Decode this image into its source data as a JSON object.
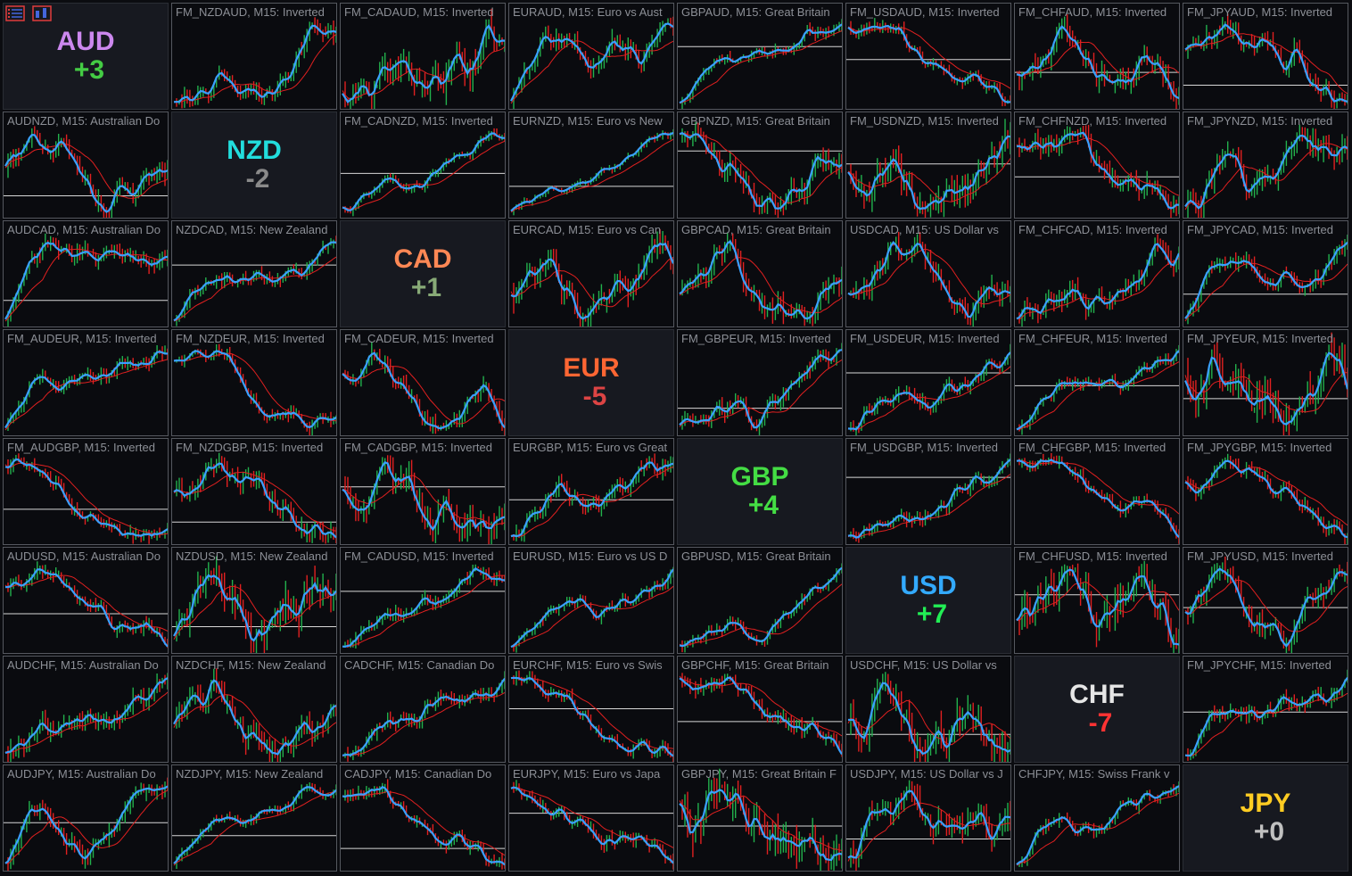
{
  "toolbar": [
    {
      "name": "list-view-icon",
      "color": "#e03c3c"
    },
    {
      "name": "chart-settings-icon",
      "color": "#e03c3c"
    }
  ],
  "colors": {
    "price_line": "#3aa0ff",
    "ma_line": "#e02020",
    "bull": "#22b14c",
    "bear": "#e02020",
    "level": "#d8d8d8"
  },
  "currencies": [
    {
      "code": "AUD",
      "score": "+3",
      "color": "#cc88ee",
      "score_color": "#44cc44"
    },
    {
      "code": "NZD",
      "score": "-2",
      "color": "#22dddd",
      "score_color": "#8a8a8a"
    },
    {
      "code": "CAD",
      "score": "+1",
      "color": "#ff8855",
      "score_color": "#88aa77"
    },
    {
      "code": "EUR",
      "score": "-5",
      "color": "#ff6633",
      "score_color": "#dd4444"
    },
    {
      "code": "GBP",
      "score": "+4",
      "color": "#44dd44",
      "score_color": "#44dd44"
    },
    {
      "code": "USD",
      "score": "+7",
      "color": "#33aaff",
      "score_color": "#22ee55"
    },
    {
      "code": "CHF",
      "score": "-7",
      "color": "#e6e6e6",
      "score_color": "#ff3333"
    },
    {
      "code": "JPY",
      "score": "+0",
      "color": "#ffcc22",
      "score_color": "#c0c0c0"
    }
  ],
  "charts": [
    [
      "",
      "FM_NZDAUD, M15:  Inverted",
      "FM_CADAUD, M15:  Inverted",
      "EURAUD, M15:  Euro vs Aust",
      "GBPAUD, M15:  Great Britain",
      "FM_USDAUD, M15:  Inverted",
      "FM_CHFAUD, M15:  Inverted",
      "FM_JPYAUD, M15:  Inverted"
    ],
    [
      "AUDNZD, M15:  Australian Do",
      "",
      "FM_CADNZD, M15:  Inverted",
      "EURNZD, M15:  Euro vs New",
      "GBPNZD, M15:  Great Britain",
      "FM_USDNZD, M15:  Inverted",
      "FM_CHFNZD, M15:  Inverted",
      "FM_JPYNZD, M15:  Inverted"
    ],
    [
      "AUDCAD, M15:  Australian Do",
      "NZDCAD, M15:  New Zealand",
      "",
      "EURCAD, M15:  Euro vs Can",
      "GBPCAD, M15:  Great Britain",
      "USDCAD, M15:  US Dollar vs",
      "FM_CHFCAD, M15:  Inverted",
      "FM_JPYCAD, M15:  Inverted"
    ],
    [
      "FM_AUDEUR, M15:  Inverted",
      "FM_NZDEUR, M15:  Inverted",
      "FM_CADEUR, M15:  Inverted",
      "",
      "FM_GBPEUR, M15:  Inverted",
      "FM_USDEUR, M15:  Inverted",
      "FM_CHFEUR, M15:  Inverted",
      "FM_JPYEUR, M15:  Inverted"
    ],
    [
      "FM_AUDGBP, M15:  Inverted",
      "FM_NZDGBP, M15:  Inverted",
      "FM_CADGBP, M15:  Inverted",
      "EURGBP, M15:  Euro vs Great",
      "",
      "FM_USDGBP, M15:  Inverted",
      "FM_CHFGBP, M15:  Inverted",
      "FM_JPYGBP, M15:  Inverted"
    ],
    [
      "AUDUSD, M15:  Australian Do",
      "NZDUSD, M15:  New Zealand",
      "FM_CADUSD, M15:  Inverted",
      "EURUSD, M15:  Euro vs US D",
      "GBPUSD, M15:  Great Britain",
      "",
      "FM_CHFUSD, M15:  Inverted",
      "FM_JPYUSD, M15:  Inverted"
    ],
    [
      "AUDCHF, M15:  Australian Do",
      "NZDCHF, M15:  New Zealand",
      "CADCHF, M15:  Canadian Do",
      "EURCHF, M15:  Euro vs Swis",
      "GBPCHF, M15:  Great Britain",
      "USDCHF, M15:  US Dollar vs",
      "",
      "FM_JPYCHF, M15:  Inverted"
    ],
    [
      "AUDJPY, M15:  Australian Do",
      "NZDJPY, M15:  New Zealand",
      "CADJPY, M15:  Canadian Do",
      "EURJPY, M15:  Euro vs Japa",
      "GBPJPY, M15:  Great Britain F",
      "USDJPY, M15:  US Dollar vs J",
      "CHFJPY, M15:  Swiss Frank v",
      ""
    ]
  ]
}
